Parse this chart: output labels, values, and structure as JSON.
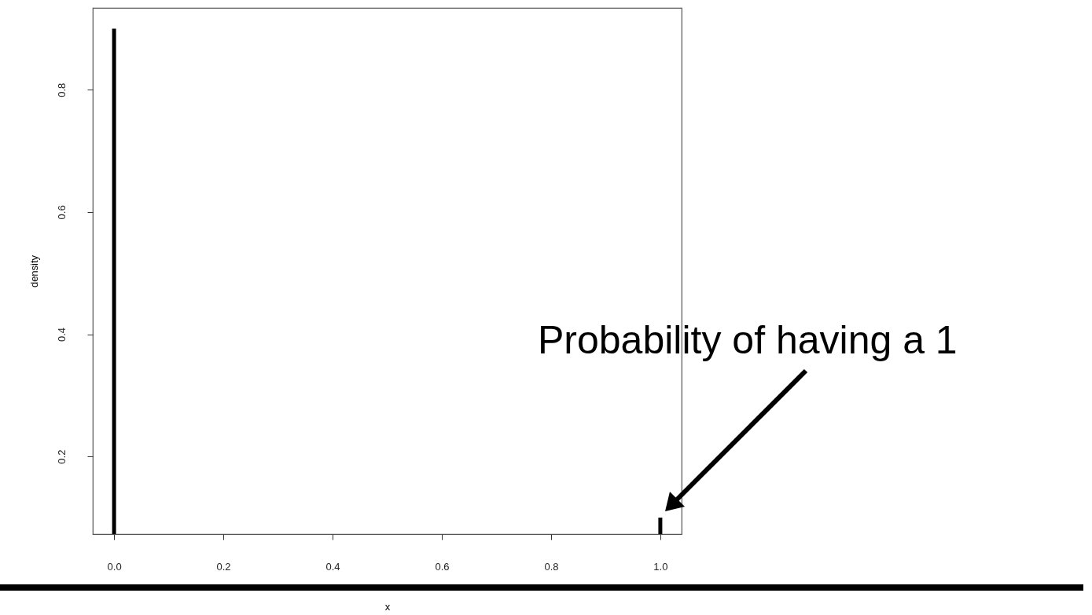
{
  "chart_data": {
    "type": "bar",
    "xlabel": "x",
    "ylabel": "density",
    "x": [
      0,
      1
    ],
    "values": [
      0.9,
      0.1
    ],
    "color": "#000000",
    "xlim": [
      -0.039,
      1.039
    ],
    "ylim": [
      0.073,
      0.934
    ],
    "xticks": [
      {
        "value": 0,
        "label": "0.0"
      },
      {
        "value": 0.2,
        "label": "0.2"
      },
      {
        "value": 0.4,
        "label": "0.4"
      },
      {
        "value": 0.6,
        "label": "0.6"
      },
      {
        "value": 0.8,
        "label": "0.8"
      },
      {
        "value": 1,
        "label": "1.0"
      }
    ],
    "yticks": [
      0.2,
      0.4,
      0.6,
      0.8
    ],
    "annotations": [
      "Probability of having a 1"
    ]
  }
}
